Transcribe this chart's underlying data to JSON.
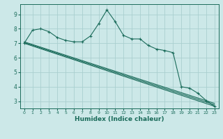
{
  "title": "",
  "xlabel": "Humidex (Indice chaleur)",
  "background_color": "#cce8e8",
  "grid_color": "#aacfcf",
  "line_color": "#1a6b5a",
  "xlim": [
    -0.5,
    23.5
  ],
  "ylim": [
    2.5,
    9.7
  ],
  "xticks": [
    0,
    1,
    2,
    3,
    4,
    5,
    6,
    7,
    8,
    9,
    10,
    11,
    12,
    13,
    14,
    15,
    16,
    17,
    18,
    19,
    20,
    21,
    22,
    23
  ],
  "yticks": [
    3,
    4,
    5,
    6,
    7,
    8,
    9
  ],
  "series_main": [
    [
      0,
      7.0
    ],
    [
      1,
      7.9
    ],
    [
      2,
      8.0
    ],
    [
      3,
      7.8
    ],
    [
      4,
      7.4
    ],
    [
      5,
      7.2
    ],
    [
      6,
      7.1
    ],
    [
      7,
      7.1
    ],
    [
      8,
      7.5
    ],
    [
      9,
      8.35
    ],
    [
      10,
      9.3
    ],
    [
      11,
      8.5
    ],
    [
      12,
      7.55
    ],
    [
      13,
      7.3
    ],
    [
      14,
      7.3
    ],
    [
      15,
      6.85
    ],
    [
      16,
      6.6
    ],
    [
      17,
      6.5
    ],
    [
      18,
      6.35
    ],
    [
      19,
      4.0
    ],
    [
      20,
      3.9
    ],
    [
      21,
      3.55
    ],
    [
      22,
      3.05
    ],
    [
      23,
      2.65
    ]
  ],
  "series_trend1": [
    [
      0,
      7.0
    ],
    [
      23,
      2.65
    ]
  ],
  "series_trend2": [
    [
      0,
      7.05
    ],
    [
      23,
      2.75
    ]
  ],
  "series_trend3": [
    [
      0,
      7.1
    ],
    [
      23,
      2.85
    ]
  ]
}
